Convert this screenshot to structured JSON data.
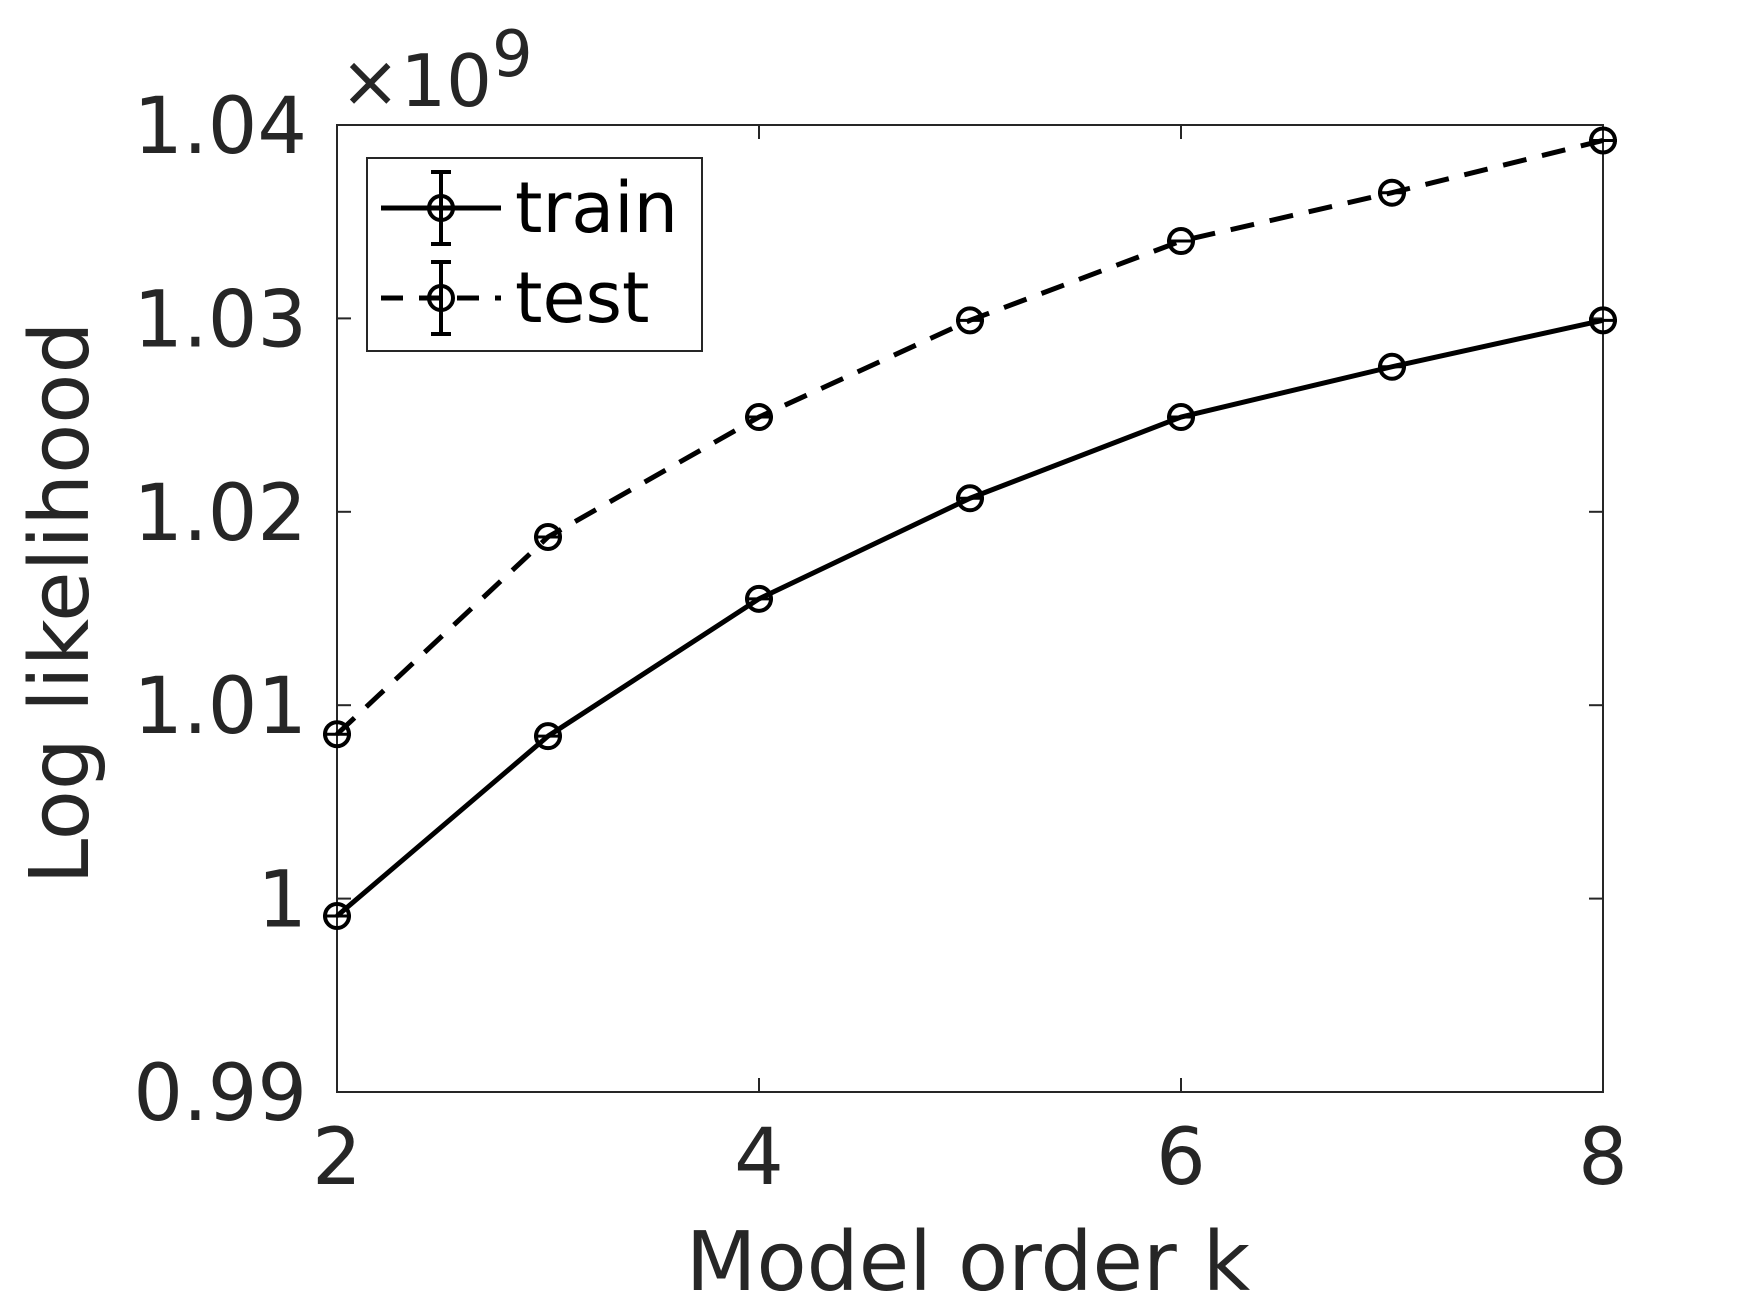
{
  "chart_data": {
    "type": "line",
    "title": "",
    "xlabel": "Model order k",
    "ylabel": "Log likelihood",
    "y_exponent_label": "×10",
    "y_exponent_power": "9",
    "xlim": [
      2,
      8
    ],
    "ylim": [
      0.99,
      1.04
    ],
    "x_ticks": [
      2,
      4,
      6,
      8
    ],
    "x_tick_labels": [
      "2",
      "4",
      "6",
      "8"
    ],
    "y_ticks": [
      0.99,
      1.0,
      1.01,
      1.02,
      1.03,
      1.04
    ],
    "y_tick_labels": [
      "0.99",
      "1",
      "1.01",
      "1.02",
      "1.03",
      "1.04"
    ],
    "grid": false,
    "legend_position": "top-left",
    "x": [
      2,
      3,
      4,
      5,
      6,
      7,
      8
    ],
    "series": [
      {
        "name": "train",
        "style": "solid",
        "values": [
          0.9991,
          1.0084,
          1.0155,
          1.0207,
          1.0249,
          1.0275,
          1.0299
        ]
      },
      {
        "name": "test",
        "style": "dashed",
        "values": [
          1.0085,
          1.0187,
          1.0249,
          1.0299,
          1.034,
          1.0365,
          1.0392
        ]
      }
    ],
    "line_color": "#000000"
  }
}
